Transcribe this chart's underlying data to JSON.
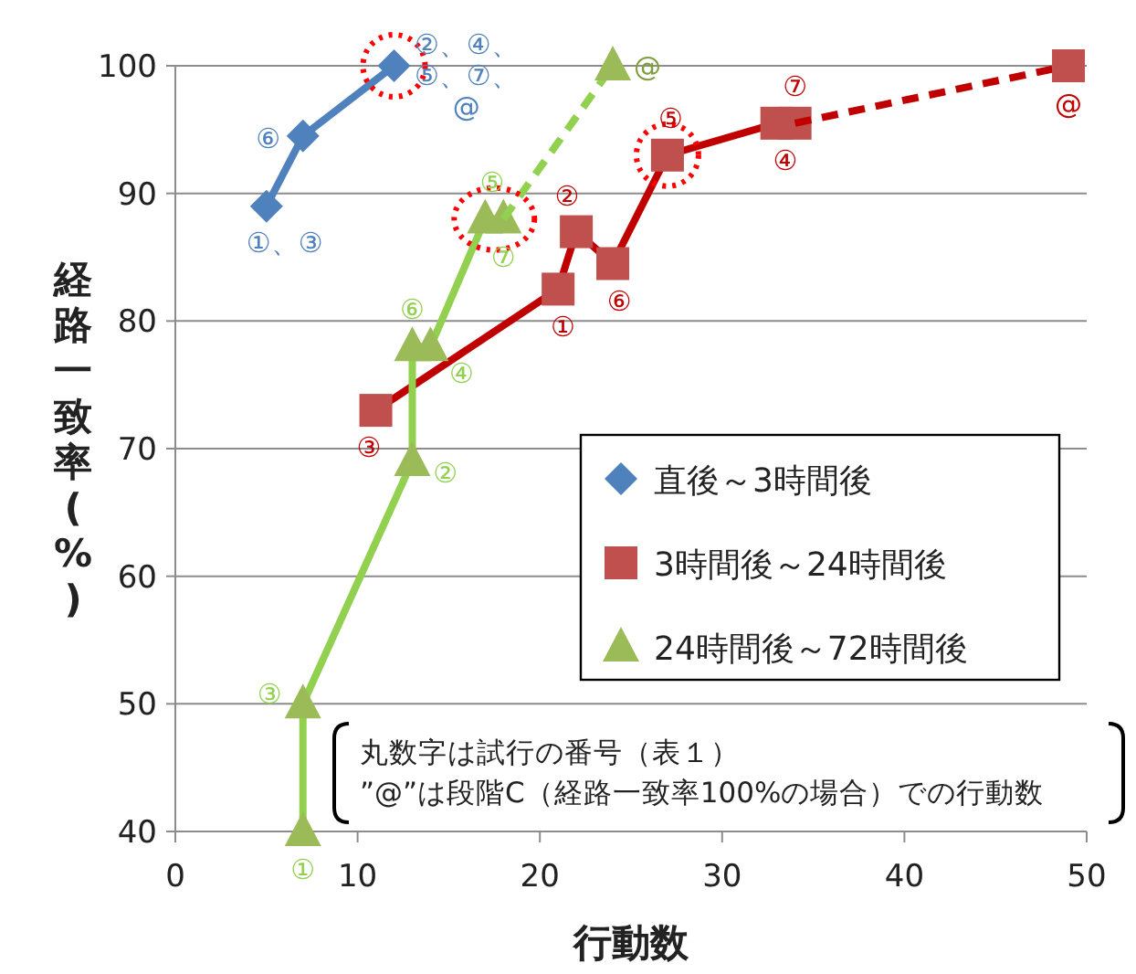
{
  "chart_data": {
    "type": "line",
    "xlabel": "行動数",
    "ylabel": "経路一致率(%)",
    "xlim": [
      0,
      50
    ],
    "xticks": [
      0,
      10,
      20,
      30,
      40,
      50
    ],
    "ylim": [
      40,
      100
    ],
    "yticks": [
      40,
      50,
      60,
      70,
      80,
      90,
      100
    ],
    "grid": "y",
    "legend": "right",
    "line_style": "solid",
    "annotations": [
      "丸数字は試行の番号（表１）",
      "”@”は段階C（経路一致率100%の場合）での行動数"
    ],
    "series": [
      {
        "name": "直後～3時間後",
        "color": "#4f81bd",
        "colors": [
          "#4f81bd",
          "#4f81bd",
          "#4f81bd"
        ],
        "marker": "diamond",
        "x": [
          5,
          7,
          12
        ],
        "values": [
          89,
          94.5,
          100
        ],
        "value_labels": [
          "①、③",
          "⑥",
          "②、④、⑤、⑦、@"
        ]
      },
      {
        "name": "3時間後～24時間後",
        "color": "#c00000",
        "colors": [
          "#c0504d",
          "#c0504d",
          "#c0504d",
          "#c0504d",
          "#c0504d",
          "#c0504d",
          "#c0504d"
        ],
        "marker": "square",
        "x": [
          11,
          21,
          22,
          24,
          27,
          33,
          34
        ],
        "values": [
          73,
          82.5,
          87,
          84.5,
          93,
          95.5,
          95.5
        ],
        "value_labels": [
          "③",
          "①",
          "②",
          "⑥",
          "⑤",
          "④",
          "⑦"
        ]
      },
      {
        "type": "line",
        "color": "#c00000",
        "marker": "none",
        "line_style": "dashed",
        "x": [
          34,
          49
        ],
        "values": [
          95.5,
          100
        ]
      },
      {
        "type": "scatter",
        "color": "#c00000",
        "colors": [
          "#c0504d"
        ],
        "marker": "square",
        "x": [
          49
        ],
        "values": [
          100
        ],
        "value_labels": [
          "@"
        ]
      },
      {
        "name": "24時間後～72時間後",
        "color": "#92d050",
        "colors": [
          "#9bbb59",
          "#9bbb59",
          "#9bbb59",
          "#9bbb59",
          "#9bbb59",
          "#9bbb59",
          "#9bbb59"
        ],
        "marker": "triangle",
        "x": [
          7,
          7,
          13,
          13,
          14,
          17,
          18
        ],
        "values": [
          40,
          50,
          69,
          78,
          78,
          88,
          88
        ],
        "value_labels": [
          "①",
          "③",
          "②",
          "⑥",
          "④",
          "⑤",
          "⑦"
        ]
      },
      {
        "type": "line",
        "color": "#92d050",
        "marker": "none",
        "line_style": "dashed",
        "x": [
          18,
          24
        ],
        "values": [
          88,
          100
        ]
      },
      {
        "type": "scatter",
        "color": "#7f9f3f",
        "colors": [
          "#9bbb59"
        ],
        "marker": "triangle",
        "x": [
          24
        ],
        "values": [
          100
        ],
        "value_labels": [
          "@"
        ]
      }
    ]
  }
}
